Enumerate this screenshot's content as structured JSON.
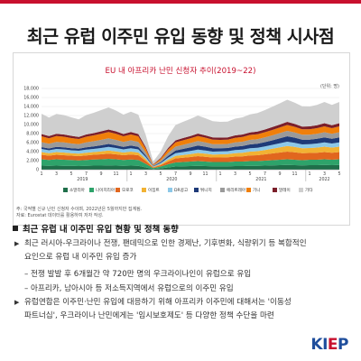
{
  "page": {
    "title": "최근 유럽 이주민 유입 동향 및 정책 시사점"
  },
  "chart_data": {
    "type": "area",
    "title": "EU 내 아프리카 난민 신청자 추이(2019~22)",
    "unit": "(단위: 명)",
    "ylim": [
      0,
      18000
    ],
    "yticks": [
      0,
      2000,
      4000,
      6000,
      8000,
      10000,
      12000,
      14000,
      16000,
      18000
    ],
    "ytick_labels": [
      "0",
      "2,000",
      "4,000",
      "6,000",
      "8,000",
      "10,000",
      "12,000",
      "14,000",
      "16,000",
      "18,000"
    ],
    "x_month_labels": [
      "1",
      "3",
      "5",
      "7",
      "9",
      "11",
      "1",
      "3",
      "5",
      "7",
      "9",
      "11",
      "1",
      "3",
      "5",
      "7",
      "9",
      "11",
      "1",
      "3",
      "5"
    ],
    "x_year_labels": [
      "2019",
      "2020",
      "2021",
      "2022"
    ],
    "x": [
      "2019-01",
      "2019-02",
      "2019-03",
      "2019-04",
      "2019-05",
      "2019-06",
      "2019-07",
      "2019-08",
      "2019-09",
      "2019-10",
      "2019-11",
      "2019-12",
      "2020-01",
      "2020-02",
      "2020-03",
      "2020-04",
      "2020-05",
      "2020-06",
      "2020-07",
      "2020-08",
      "2020-09",
      "2020-10",
      "2020-11",
      "2020-12",
      "2021-01",
      "2021-02",
      "2021-03",
      "2021-04",
      "2021-05",
      "2021-06",
      "2021-07",
      "2021-08",
      "2021-09",
      "2021-10",
      "2021-11",
      "2021-12",
      "2022-01",
      "2022-02",
      "2022-03",
      "2022-04",
      "2022-05"
    ],
    "series": [
      {
        "name": "소말리아",
        "color": "#1f6f4a",
        "values": [
          900,
          850,
          900,
          850,
          850,
          800,
          850,
          900,
          900,
          950,
          900,
          850,
          900,
          850,
          500,
          150,
          300,
          500,
          700,
          750,
          800,
          850,
          800,
          750,
          750,
          750,
          800,
          800,
          850,
          850,
          900,
          950,
          1000,
          1050,
          1000,
          950,
          1000,
          1000,
          1050,
          1000,
          1050
        ]
      },
      {
        "name": "나이지리아",
        "color": "#2ea36a",
        "values": [
          1400,
          1300,
          1400,
          1350,
          1300,
          1250,
          1300,
          1350,
          1400,
          1450,
          1400,
          1300,
          1350,
          1300,
          800,
          200,
          400,
          700,
          900,
          950,
          1000,
          1050,
          1000,
          950,
          950,
          950,
          1000,
          1000,
          1050,
          1050,
          1100,
          1150,
          1200,
          1250,
          1200,
          1150,
          1200,
          1200,
          1250,
          1200,
          1250
        ]
      },
      {
        "name": "모로코",
        "color": "#e1661e",
        "values": [
          1000,
          950,
          1000,
          1000,
          950,
          950,
          1000,
          1050,
          1100,
          1150,
          1100,
          1050,
          1100,
          1050,
          650,
          150,
          300,
          600,
          900,
          950,
          1000,
          1100,
          1050,
          1000,
          1000,
          1050,
          1100,
          1150,
          1250,
          1300,
          1400,
          1500,
          1600,
          1700,
          1650,
          1550,
          1500,
          1550,
          1600,
          1550,
          1600
        ]
      },
      {
        "name": "이집트",
        "color": "#f2b233",
        "values": [
          600,
          550,
          600,
          600,
          550,
          550,
          600,
          600,
          650,
          700,
          650,
          600,
          650,
          600,
          400,
          100,
          200,
          400,
          550,
          600,
          650,
          700,
          700,
          650,
          700,
          700,
          750,
          800,
          850,
          900,
          950,
          1050,
          1150,
          1250,
          1200,
          1100,
          1100,
          1150,
          1200,
          1150,
          1200
        ]
      },
      {
        "name": "DR콩고",
        "color": "#8cc8e8",
        "values": [
          700,
          650,
          700,
          700,
          650,
          650,
          700,
          700,
          750,
          800,
          750,
          700,
          750,
          700,
          450,
          100,
          250,
          450,
          600,
          650,
          700,
          750,
          700,
          650,
          650,
          650,
          700,
          700,
          750,
          750,
          800,
          850,
          900,
          950,
          900,
          850,
          850,
          900,
          950,
          900,
          950
        ]
      },
      {
        "name": "튀니지",
        "color": "#1e3a78",
        "values": [
          400,
          400,
          450,
          450,
          450,
          450,
          500,
          550,
          600,
          650,
          600,
          550,
          600,
          550,
          350,
          100,
          200,
          400,
          600,
          700,
          800,
          900,
          850,
          750,
          700,
          700,
          750,
          800,
          850,
          900,
          950,
          1000,
          1100,
          1200,
          1150,
          1050,
          1000,
          1050,
          1100,
          1050,
          1100
        ]
      },
      {
        "name": "에리트레아",
        "color": "#9a9a9a",
        "values": [
          1100,
          1050,
          1100,
          1100,
          1050,
          1000,
          1100,
          1150,
          1200,
          1250,
          1200,
          1100,
          1150,
          1100,
          700,
          150,
          350,
          650,
          850,
          900,
          950,
          1000,
          950,
          900,
          900,
          900,
          950,
          950,
          1000,
          1000,
          1050,
          1100,
          1150,
          1200,
          1150,
          1100,
          1100,
          1100,
          1150,
          1100,
          1150
        ]
      },
      {
        "name": "기니",
        "color": "#f07f0a",
        "values": [
          1300,
          1200,
          1300,
          1250,
          1200,
          1150,
          1250,
          1300,
          1350,
          1400,
          1350,
          1250,
          1300,
          1250,
          800,
          150,
          400,
          750,
          950,
          1000,
          1050,
          1100,
          1050,
          1000,
          950,
          950,
          1000,
          1050,
          1100,
          1100,
          1150,
          1200,
          1250,
          1300,
          1250,
          1200,
          1200,
          1250,
          1300,
          1250,
          1300
        ]
      },
      {
        "name": "말레이",
        "color": "#7b1f2a",
        "values": [
          500,
          500,
          500,
          500,
          500,
          450,
          500,
          500,
          550,
          550,
          550,
          500,
          550,
          500,
          350,
          100,
          200,
          350,
          450,
          500,
          500,
          550,
          500,
          500,
          500,
          500,
          550,
          550,
          550,
          600,
          600,
          650,
          650,
          700,
          650,
          600,
          650,
          650,
          700,
          650,
          700
        ]
      },
      {
        "name": "기타",
        "color": "#cfcfcf",
        "values": [
          4500,
          4100,
          4400,
          4300,
          4100,
          3900,
          4300,
          4500,
          4700,
          4900,
          4600,
          4300,
          4500,
          4300,
          2700,
          600,
          1400,
          2600,
          3400,
          3600,
          3800,
          4000,
          3800,
          3600,
          3500,
          3500,
          3700,
          3800,
          4000,
          4100,
          4300,
          4500,
          4700,
          4900,
          4700,
          4500,
          4400,
          4500,
          4700,
          4500,
          4700
        ]
      }
    ],
    "legend_position": "bottom"
  },
  "notes": {
    "line1": "주: 국적별 신규 난민 신청자 수이며, 2022년은 5월까지만 집계됨.",
    "line2": "자료: Eurostat 데이터를 활용하여 저자 작성."
  },
  "section": {
    "title": "최근 유럽 내 이주민 유입 현황 및 정책 동향",
    "bullet1_line1": "최근 러시아-우크라이나 전쟁, 팬데믹으로 인한 경제난, 기후변화, 식량위기 등 복합적인",
    "bullet1_line2": "요인으로 유럽 내 이주민 유입 증가",
    "dash1": "– 전쟁 발발 후 6개월간 약 720만 명의 우크라이나인이 유럽으로 유입",
    "dash2": "– 아프리카, 남아시아 등 저소득지역에서 유럽으로의 이주민 유입",
    "bullet2_line1": "유럽연합은 이주민·난민 유입에 대응하기 위해 아프리카 이주민에 대해서는 '이동성",
    "bullet2_line2": "파트너십', 우크라이나 난민에게는 '임시보호제도' 등 다양한 정책 수단을 마련"
  },
  "logo": {
    "text_a": "KI",
    "text_e": "E",
    "text_p": "P"
  }
}
